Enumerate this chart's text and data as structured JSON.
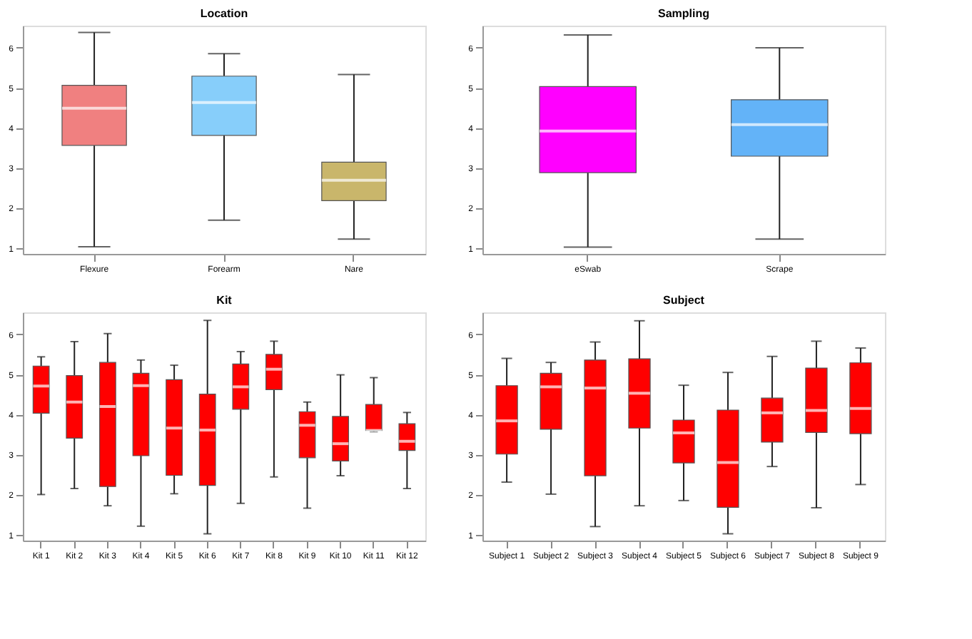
{
  "chart_data": [
    {
      "type": "box",
      "title": "Location",
      "categories": [
        "Flexure",
        "Forearm",
        "Nare"
      ],
      "colors": [
        "#f08080",
        "#87cefa",
        "#c9b66b"
      ],
      "ylim": [
        0.85,
        6.55
      ],
      "yticks": [
        1,
        2,
        3,
        4,
        5,
        6
      ],
      "grid": false,
      "boxes": [
        {
          "low": 1.03,
          "q1": 3.56,
          "median": 4.49,
          "q3": 5.06,
          "high": 6.38
        },
        {
          "low": 1.69,
          "q1": 3.81,
          "median": 4.63,
          "q3": 5.29,
          "high": 5.85
        },
        {
          "low": 1.22,
          "q1": 2.18,
          "median": 2.69,
          "q3": 3.14,
          "high": 5.33
        }
      ]
    },
    {
      "type": "box",
      "title": "Sampling",
      "categories": [
        "eSwab",
        "Scrape"
      ],
      "colors": [
        "#ff00ff",
        "#63b3f8"
      ],
      "ylim": [
        0.85,
        6.55
      ],
      "yticks": [
        1,
        2,
        3,
        4,
        5,
        6
      ],
      "grid": false,
      "boxes": [
        {
          "low": 1.02,
          "q1": 2.88,
          "median": 3.92,
          "q3": 5.03,
          "high": 6.32
        },
        {
          "low": 1.22,
          "q1": 3.29,
          "median": 4.08,
          "q3": 4.7,
          "high": 6.0
        }
      ]
    },
    {
      "type": "box",
      "title": "Kit",
      "categories": [
        "Kit 1",
        "Kit 2",
        "Kit 3",
        "Kit 4",
        "Kit 5",
        "Kit 6",
        "Kit 7",
        "Kit 8",
        "Kit 9",
        "Kit 10",
        "Kit 11",
        "Kit 12"
      ],
      "colors": [
        "#ff0000",
        "#ff0000",
        "#ff0000",
        "#ff0000",
        "#ff0000",
        "#ff0000",
        "#ff0000",
        "#ff0000",
        "#ff0000",
        "#ff0000",
        "#ff0000",
        "#ff0000"
      ],
      "ylim": [
        0.85,
        6.55
      ],
      "yticks": [
        1,
        2,
        3,
        4,
        5,
        6
      ],
      "grid": false,
      "boxes": [
        {
          "low": 2.0,
          "q1": 4.03,
          "median": 4.71,
          "q3": 5.21,
          "high": 5.44
        },
        {
          "low": 2.15,
          "q1": 3.41,
          "median": 4.31,
          "q3": 4.97,
          "high": 5.82
        },
        {
          "low": 1.72,
          "q1": 2.2,
          "median": 4.2,
          "q3": 5.3,
          "high": 6.02
        },
        {
          "low": 1.21,
          "q1": 2.97,
          "median": 4.72,
          "q3": 5.03,
          "high": 5.36
        },
        {
          "low": 2.02,
          "q1": 2.48,
          "median": 3.66,
          "q3": 4.87,
          "high": 5.23
        },
        {
          "low": 1.02,
          "q1": 2.23,
          "median": 3.61,
          "q3": 4.51,
          "high": 6.35
        },
        {
          "low": 1.78,
          "q1": 4.13,
          "median": 4.69,
          "q3": 5.26,
          "high": 5.57
        },
        {
          "low": 2.44,
          "q1": 4.62,
          "median": 5.13,
          "q3": 5.5,
          "high": 5.83
        },
        {
          "low": 1.66,
          "q1": 2.92,
          "median": 3.73,
          "q3": 4.07,
          "high": 4.31
        },
        {
          "low": 2.47,
          "q1": 2.84,
          "median": 3.27,
          "q3": 3.95,
          "high": 4.99
        },
        {
          "low": 3.57,
          "q1": 3.6,
          "median": 3.6,
          "q3": 4.25,
          "high": 4.92
        },
        {
          "low": 2.15,
          "q1": 3.1,
          "median": 3.33,
          "q3": 3.77,
          "high": 4.05
        }
      ]
    },
    {
      "type": "box",
      "title": "Subject",
      "categories": [
        "Subject 1",
        "Subject 2",
        "Subject 3",
        "Subject 4",
        "Subject 5",
        "Subject 6",
        "Subject 7",
        "Subject 8",
        "Subject 9"
      ],
      "colors": [
        "#ff0000",
        "#ff0000",
        "#ff0000",
        "#ff0000",
        "#ff0000",
        "#ff0000",
        "#ff0000",
        "#ff0000",
        "#ff0000"
      ],
      "ylim": [
        0.85,
        6.55
      ],
      "yticks": [
        1,
        2,
        3,
        4,
        5,
        6
      ],
      "grid": false,
      "boxes": [
        {
          "low": 2.31,
          "q1": 3.01,
          "median": 3.84,
          "q3": 4.72,
          "high": 5.4
        },
        {
          "low": 2.01,
          "q1": 3.63,
          "median": 4.69,
          "q3": 5.03,
          "high": 5.3
        },
        {
          "low": 1.2,
          "q1": 2.47,
          "median": 4.66,
          "q3": 5.36,
          "high": 5.81
        },
        {
          "low": 1.72,
          "q1": 3.66,
          "median": 4.53,
          "q3": 5.39,
          "high": 6.34
        },
        {
          "low": 1.85,
          "q1": 2.79,
          "median": 3.54,
          "q3": 3.86,
          "high": 4.73
        },
        {
          "low": 1.02,
          "q1": 1.68,
          "median": 2.8,
          "q3": 4.11,
          "high": 5.05
        },
        {
          "low": 2.7,
          "q1": 3.31,
          "median": 4.04,
          "q3": 4.41,
          "high": 5.45
        },
        {
          "low": 1.67,
          "q1": 3.55,
          "median": 4.1,
          "q3": 5.16,
          "high": 5.83
        },
        {
          "low": 2.25,
          "q1": 3.52,
          "median": 4.15,
          "q3": 5.29,
          "high": 5.66
        }
      ]
    }
  ]
}
